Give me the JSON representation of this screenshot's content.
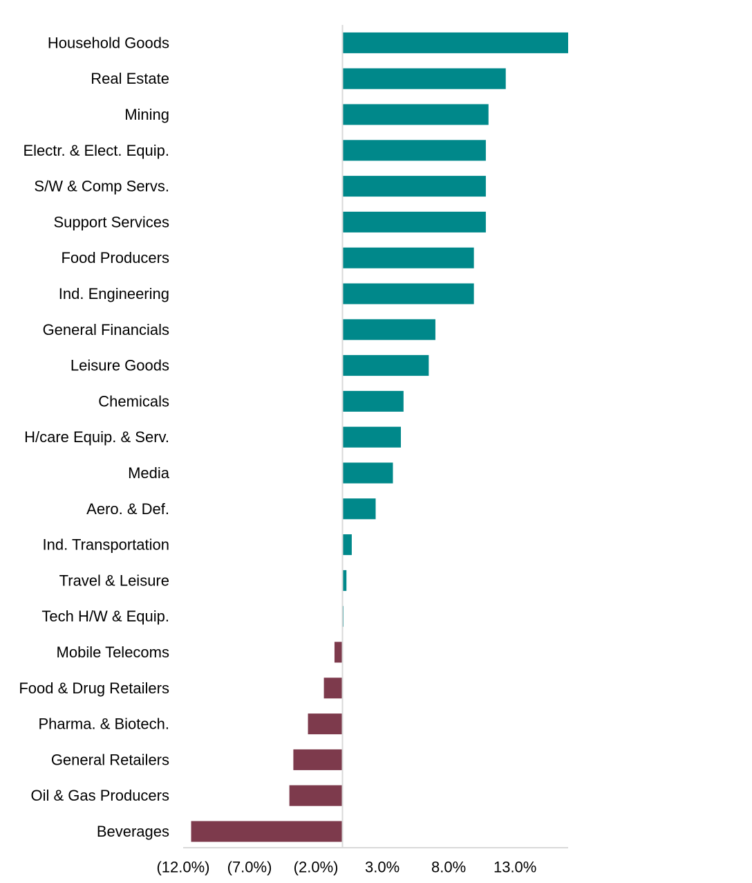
{
  "chart_data": {
    "type": "bar",
    "orientation": "horizontal",
    "title": "",
    "xlabel": "",
    "ylabel": "",
    "categories": [
      "Household Goods",
      "Real Estate",
      "Mining",
      "Electr. & Elect. Equip.",
      "S/W & Comp Servs.",
      "Support Services",
      "Food Producers",
      "Ind. Engineering",
      "General Financials",
      "Leisure Goods",
      "Chemicals",
      "H/care Equip. & Serv.",
      "Media",
      "Aero. & Def.",
      "Ind. Transportation",
      "Travel & Leisure",
      "Tech H/W & Equip.",
      "Mobile Telecoms",
      "Food & Drug Retailers",
      "Pharma. & Biotech.",
      "General Retailers",
      "Oil & Gas Producers",
      "Beverages"
    ],
    "values": [
      17.0,
      12.3,
      11.0,
      10.8,
      10.8,
      10.8,
      9.9,
      9.9,
      7.0,
      6.5,
      4.6,
      4.4,
      3.8,
      2.5,
      0.7,
      0.3,
      0.05,
      -0.6,
      -1.4,
      -2.6,
      -3.7,
      -4.0,
      -11.4
    ],
    "xlim": [
      -12.0,
      17.0
    ],
    "xticks": [
      -12.0,
      -7.0,
      -2.0,
      3.0,
      8.0,
      13.0
    ],
    "xtick_labels": [
      "(12.0%)",
      "(7.0%)",
      "(2.0%)",
      "3.0%",
      "8.0%",
      "13.0%"
    ],
    "grid": false,
    "legend": "none",
    "colors": {
      "positive": "#00888a",
      "negative": "#7d3a4c",
      "axis": "#d9d9d9"
    }
  }
}
